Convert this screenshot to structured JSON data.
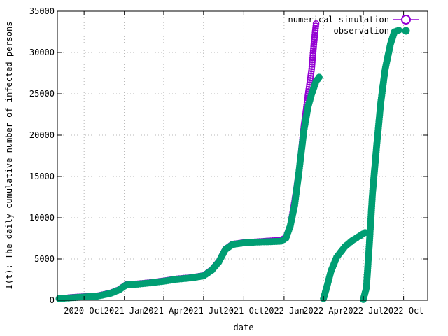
{
  "chart_data": {
    "type": "scatter",
    "xlabel": "date",
    "ylabel": "I(t): The daily cumulative number of infected persons",
    "ylim": [
      0,
      35000
    ],
    "xlim": [
      "2020-08-01",
      "2022-11-25"
    ],
    "grid": true,
    "legend_position": "top-right",
    "x_ticks": [
      {
        "date": "2020-10-01",
        "label": "2020-Oct"
      },
      {
        "date": "2021-01-01",
        "label": "2021-Jan"
      },
      {
        "date": "2021-04-01",
        "label": "2021-Apr"
      },
      {
        "date": "2021-07-01",
        "label": "2021-Jul"
      },
      {
        "date": "2021-10-01",
        "label": "2021-Oct"
      },
      {
        "date": "2022-01-01",
        "label": "2022-Jan"
      },
      {
        "date": "2022-04-01",
        "label": "2022-Apr"
      },
      {
        "date": "2022-07-01",
        "label": "2022-Jul"
      },
      {
        "date": "2022-10-01",
        "label": "2022-Oct"
      }
    ],
    "y_ticks": [
      0,
      5000,
      10000,
      15000,
      20000,
      25000,
      30000,
      35000
    ],
    "series": [
      {
        "name": "numerical simulation",
        "marker": "open-circle",
        "color": "#9400d3",
        "points": [
          [
            "2020-08-05",
            200
          ],
          [
            "2020-09-01",
            350
          ],
          [
            "2020-10-01",
            450
          ],
          [
            "2020-11-01",
            550
          ],
          [
            "2020-12-01",
            900
          ],
          [
            "2020-12-20",
            1300
          ],
          [
            "2021-01-05",
            1900
          ],
          [
            "2021-02-01",
            2000
          ],
          [
            "2021-03-01",
            2150
          ],
          [
            "2021-04-01",
            2350
          ],
          [
            "2021-05-01",
            2600
          ],
          [
            "2021-06-01",
            2750
          ],
          [
            "2021-07-01",
            3000
          ],
          [
            "2021-07-20",
            3700
          ],
          [
            "2021-08-05",
            4700
          ],
          [
            "2021-08-20",
            6200
          ],
          [
            "2021-09-05",
            6800
          ],
          [
            "2021-10-01",
            7000
          ],
          [
            "2021-11-01",
            7100
          ],
          [
            "2021-12-01",
            7200
          ],
          [
            "2021-12-25",
            7300
          ],
          [
            "2022-01-05",
            7600
          ],
          [
            "2022-01-15",
            9000
          ],
          [
            "2022-01-25",
            12000
          ],
          [
            "2022-02-05",
            16000
          ],
          [
            "2022-02-15",
            21000
          ],
          [
            "2022-02-25",
            25000
          ],
          [
            "2022-03-05",
            28000
          ],
          [
            "2022-03-10",
            31000
          ],
          [
            "2022-03-15",
            33500
          ]
        ]
      },
      {
        "name": "observation",
        "marker": "filled-circle",
        "color": "#009e73",
        "points": [
          [
            "2020-08-05",
            200
          ],
          [
            "2020-09-01",
            300
          ],
          [
            "2020-10-01",
            400
          ],
          [
            "2020-11-01",
            500
          ],
          [
            "2020-12-01",
            850
          ],
          [
            "2020-12-20",
            1250
          ],
          [
            "2021-01-05",
            1850
          ],
          [
            "2021-02-01",
            1950
          ],
          [
            "2021-03-01",
            2100
          ],
          [
            "2021-04-01",
            2300
          ],
          [
            "2021-05-01",
            2550
          ],
          [
            "2021-06-01",
            2700
          ],
          [
            "2021-07-01",
            2950
          ],
          [
            "2021-07-20",
            3650
          ],
          [
            "2021-08-05",
            4650
          ],
          [
            "2021-08-20",
            6150
          ],
          [
            "2021-09-05",
            6750
          ],
          [
            "2021-10-01",
            6950
          ],
          [
            "2021-11-01",
            7050
          ],
          [
            "2021-12-01",
            7100
          ],
          [
            "2021-12-25",
            7150
          ],
          [
            "2022-01-05",
            7500
          ],
          [
            "2022-01-15",
            9000
          ],
          [
            "2022-01-25",
            11500
          ],
          [
            "2022-02-05",
            16000
          ],
          [
            "2022-02-15",
            20500
          ],
          [
            "2022-02-25",
            23500
          ],
          [
            "2022-03-05",
            25000
          ],
          [
            "2022-03-15",
            26500
          ],
          [
            "2022-03-22",
            27000
          ],
          [
            "2022-04-01",
            200
          ],
          [
            "2022-04-08",
            1500
          ],
          [
            "2022-04-18",
            3500
          ],
          [
            "2022-05-01",
            5200
          ],
          [
            "2022-05-20",
            6500
          ],
          [
            "2022-06-05",
            7200
          ],
          [
            "2022-06-20",
            7700
          ],
          [
            "2022-07-05",
            8200
          ],
          [
            "2022-07-01",
            100
          ],
          [
            "2022-07-08",
            1500
          ],
          [
            "2022-07-15",
            7000
          ],
          [
            "2022-07-22",
            13000
          ],
          [
            "2022-08-01",
            19000
          ],
          [
            "2022-08-10",
            24000
          ],
          [
            "2022-08-20",
            28000
          ],
          [
            "2022-09-01",
            31000
          ],
          [
            "2022-09-10",
            32500
          ],
          [
            "2022-09-20",
            32700
          ]
        ]
      }
    ]
  }
}
